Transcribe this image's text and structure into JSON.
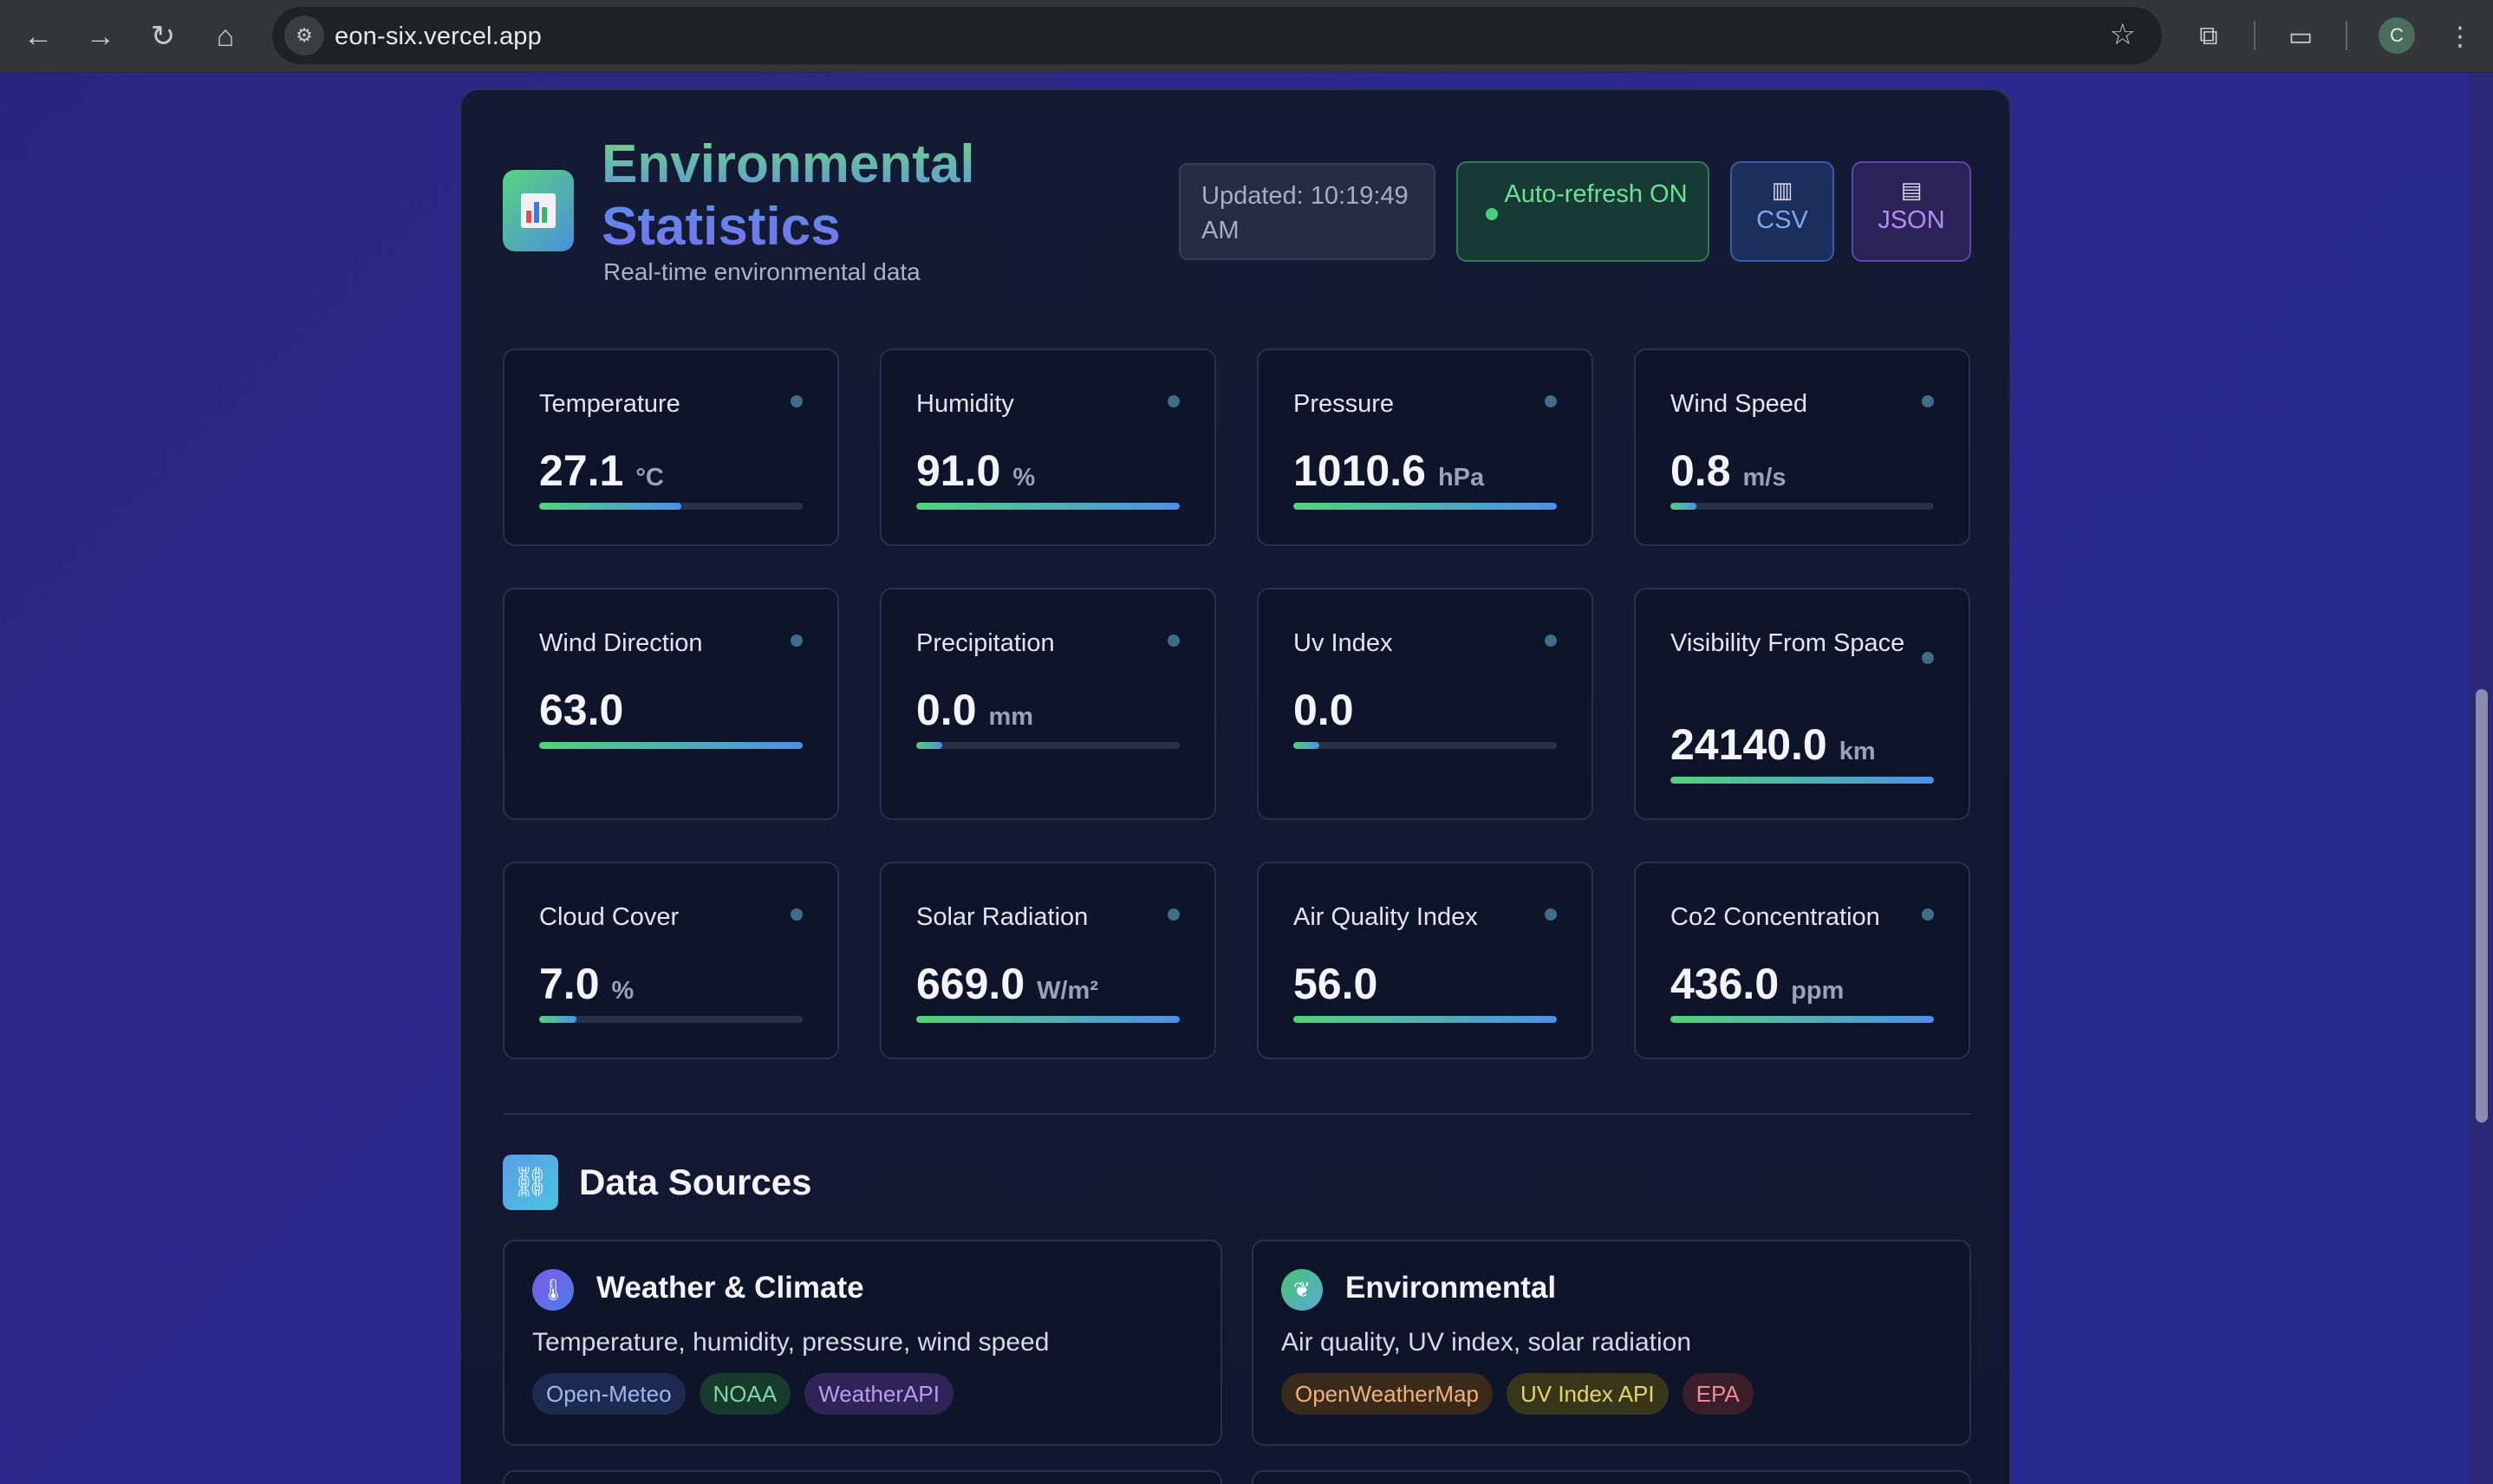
{
  "browser": {
    "url": "eon-six.vercel.app",
    "profile_initial": "C",
    "icons": [
      "back-icon",
      "forward-icon",
      "reload-icon",
      "home-icon",
      "site-info-icon",
      "bookmark-star-icon",
      "extensions-icon",
      "tab-search-icon",
      "menu-kebab-icon"
    ]
  },
  "header": {
    "title": "Environmental Statistics",
    "subtitle": "Real-time environmental data",
    "updated": "Updated: 10:19:49 AM",
    "auto_refresh": "Auto-refresh ON",
    "csv_label": "CSV",
    "json_label": "JSON",
    "logo_icon": "bar-chart-icon",
    "csv_icon": "bar-chart-icon",
    "json_icon": "document-icon"
  },
  "metrics": [
    {
      "label": "Temperature",
      "value": "27.1",
      "unit": "°C",
      "bar_fraction": 0.54
    },
    {
      "label": "Humidity",
      "value": "91.0",
      "unit": "%",
      "bar_fraction": 1.0
    },
    {
      "label": "Pressure",
      "value": "1010.6",
      "unit": "hPa",
      "bar_fraction": 1.0
    },
    {
      "label": "Wind Speed",
      "value": "0.8",
      "unit": "m/s",
      "bar_fraction": 0.1
    },
    {
      "label": "Wind Direction",
      "value": "63.0",
      "unit": "",
      "bar_fraction": 1.0
    },
    {
      "label": "Precipitation",
      "value": "0.0",
      "unit": "mm",
      "bar_fraction": 0.1
    },
    {
      "label": "Uv Index",
      "value": "0.0",
      "unit": "",
      "bar_fraction": 0.1
    },
    {
      "label": "Visibility From Space",
      "value": "24140.0",
      "unit": "km",
      "bar_fraction": 1.0
    },
    {
      "label": "Cloud Cover",
      "value": "7.0",
      "unit": "%",
      "bar_fraction": 0.14
    },
    {
      "label": "Solar Radiation",
      "value": "669.0",
      "unit": "W/m²",
      "bar_fraction": 1.0
    },
    {
      "label": "Air Quality Index",
      "value": "56.0",
      "unit": "",
      "bar_fraction": 1.0
    },
    {
      "label": "Co2 Concentration",
      "value": "436.0",
      "unit": "ppm",
      "bar_fraction": 1.0
    }
  ],
  "data_sources": {
    "title": "Data Sources",
    "icon": "link-icon",
    "sources": [
      {
        "title": "Weather & Climate",
        "description": "Temperature, humidity, pressure, wind speed",
        "icon": "thermometer-icon",
        "icon_gradient": [
          "#7c5ce8",
          "#4e7ae6"
        ],
        "chips": [
          {
            "label": "Open-Meteo",
            "bg": "#1d2a4f",
            "fg": "#9fb8ee"
          },
          {
            "label": "NOAA",
            "bg": "#173a2c",
            "fg": "#7fd8a0"
          },
          {
            "label": "WeatherAPI",
            "bg": "#2e2455",
            "fg": "#b99cf0"
          }
        ]
      },
      {
        "title": "Environmental",
        "description": "Air quality, UV index, solar radiation",
        "icon": "leaf-icon",
        "icon_gradient": [
          "#47c46e",
          "#5aa8d8"
        ],
        "chips": [
          {
            "label": "OpenWeatherMap",
            "bg": "#3a2a1c",
            "fg": "#f0b27a"
          },
          {
            "label": "UV Index API",
            "bg": "#38361a",
            "fg": "#e6d66a"
          },
          {
            "label": "EPA",
            "bg": "#3a1f2a",
            "fg": "#ee8a9a"
          }
        ]
      }
    ]
  }
}
